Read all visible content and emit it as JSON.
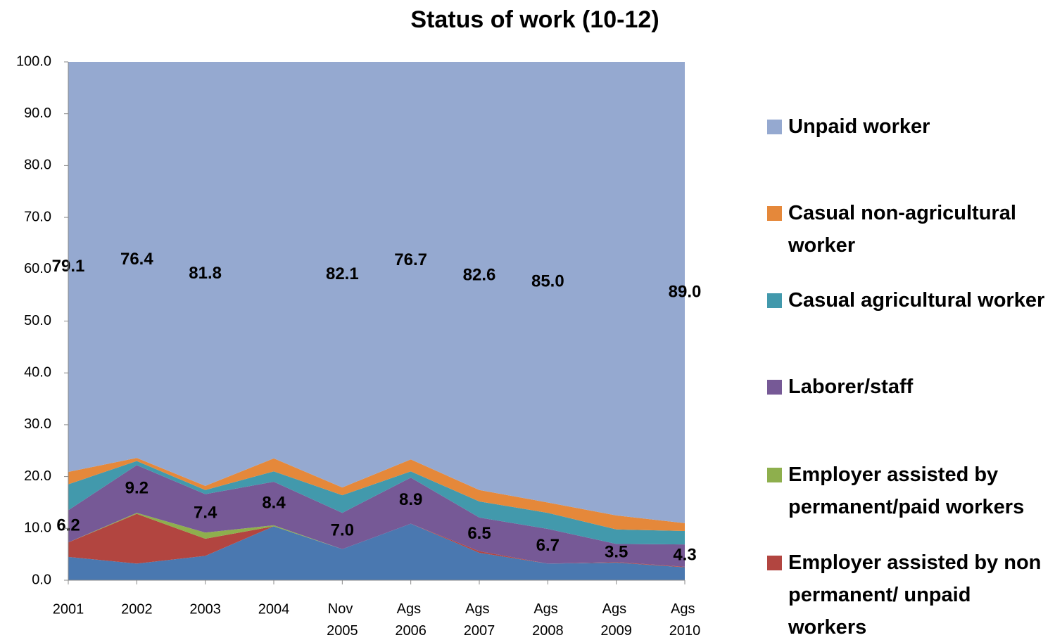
{
  "chart_data": {
    "type": "stacked-area",
    "title": "Status of work (10-12)",
    "categories": [
      "2001",
      "2002",
      "2003",
      "2004",
      "Nov 2005",
      "Ags 2006",
      "Ags 2007",
      "Ags 2008",
      "Ags 2009",
      "Ags 2010"
    ],
    "series": [
      {
        "color": "#4a78b0",
        "values": [
          4.5,
          3.2,
          4.7,
          10.4,
          6.0,
          10.9,
          5.3,
          3.2,
          3.4,
          2.5
        ]
      },
      {
        "name": "Employer assisted by non permanent/ unpaid workers",
        "color": "#b24540",
        "values": [
          2.8,
          9.6,
          3.3,
          0,
          0,
          0,
          0.3,
          0,
          0.1,
          0.1
        ]
      },
      {
        "name": "Employer assisted by permanent/paid workers",
        "color": "#8eaf4d",
        "values": [
          0,
          0.2,
          1.2,
          0.2,
          0,
          0,
          0,
          0,
          0,
          0
        ]
      },
      {
        "name": "Laborer/staff",
        "color": "#765996",
        "values": [
          6.2,
          9.2,
          7.4,
          8.4,
          7.0,
          8.9,
          6.5,
          6.7,
          3.5,
          4.3
        ],
        "value_labels": [
          "6.2",
          "9.2",
          "7.4",
          "8.4",
          "7.0",
          "8.9",
          "6.5",
          "6.7",
          "3.5",
          "4.3"
        ]
      },
      {
        "name": "Casual agricultural worker",
        "color": "#4299ac",
        "values": [
          5.0,
          0.8,
          0.8,
          2.0,
          3.4,
          1.2,
          3.1,
          3.1,
          2.8,
          2.6
        ]
      },
      {
        "name": "Casual non-agricultural worker",
        "color": "#e5883a",
        "values": [
          2.4,
          0.6,
          0.8,
          2.5,
          1.5,
          2.3,
          2.2,
          2.0,
          2.7,
          1.5
        ]
      },
      {
        "name": "Unpaid worker",
        "color": "#95a9d0",
        "values": [
          79.1,
          76.4,
          81.8,
          76.5,
          82.1,
          76.7,
          82.6,
          85.0,
          87.5,
          89.0
        ],
        "value_labels": [
          "79.1",
          "76.4",
          "81.8",
          null,
          "82.1",
          "76.7",
          "82.6",
          "85.0",
          null,
          "89.0"
        ]
      }
    ],
    "ylim": [
      0,
      100
    ],
    "yticks": [
      {
        "value": 0,
        "label": "0.0"
      },
      {
        "value": 10,
        "label": "10.0"
      },
      {
        "value": 20,
        "label": "20.0"
      },
      {
        "value": 30,
        "label": "30.0"
      },
      {
        "value": 40,
        "label": "40.0"
      },
      {
        "value": 50,
        "label": "50.0"
      },
      {
        "value": 60,
        "label": "60.0"
      },
      {
        "value": 70,
        "label": "70.0"
      },
      {
        "value": 80,
        "label": "80.0"
      },
      {
        "value": 90,
        "label": "90.0"
      },
      {
        "value": 100,
        "label": "100.0"
      }
    ]
  }
}
